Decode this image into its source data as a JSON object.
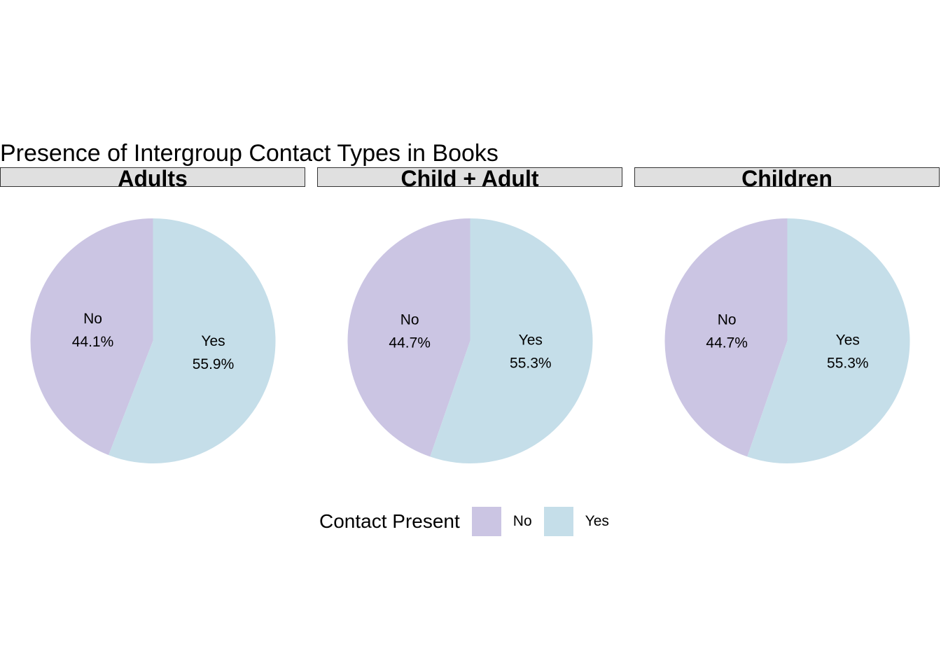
{
  "chart_data": {
    "type": "pie",
    "title": "Presence of Intergroup Contact Types in Books",
    "legend": {
      "title": "Contact Present",
      "position": "bottom",
      "entries": [
        {
          "label": "No",
          "color": "#cbc5e3"
        },
        {
          "label": "Yes",
          "color": "#c5dee9"
        }
      ]
    },
    "facets": [
      {
        "name": "Adults",
        "slices": [
          {
            "category": "No",
            "value": 44.1,
            "label": "44.1%"
          },
          {
            "category": "Yes",
            "value": 55.9,
            "label": "55.9%"
          }
        ]
      },
      {
        "name": "Child + Adult",
        "slices": [
          {
            "category": "No",
            "value": 44.7,
            "label": "44.7%"
          },
          {
            "category": "Yes",
            "value": 55.3,
            "label": "55.3%"
          }
        ]
      },
      {
        "name": "Children",
        "slices": [
          {
            "category": "No",
            "value": 44.7,
            "label": "44.7%"
          },
          {
            "category": "Yes",
            "value": 55.3,
            "label": "55.3%"
          }
        ]
      }
    ]
  }
}
